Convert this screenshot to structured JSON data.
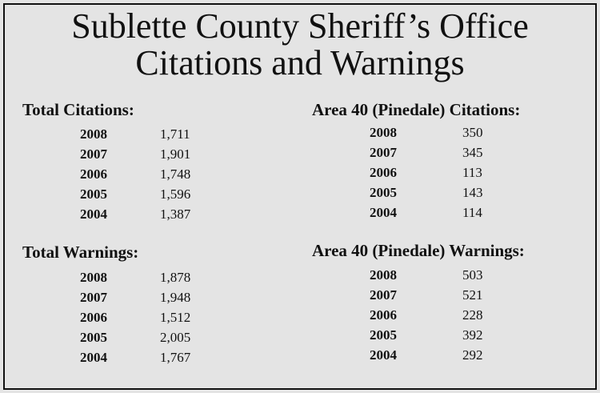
{
  "title": [
    "Sublette County Sheriff’s Office",
    "Citations and Warnings"
  ],
  "sections": [
    {
      "heading": "Total Citations:",
      "rows": [
        [
          "2008",
          "1,711"
        ],
        [
          "2007",
          "1,901"
        ],
        [
          "2006",
          "1,748"
        ],
        [
          "2005",
          "1,596"
        ],
        [
          "2004",
          "1,387"
        ]
      ]
    },
    {
      "heading": "Area 40 (Pinedale) Citations:",
      "rows": [
        [
          "2008",
          "350"
        ],
        [
          "2007",
          "345"
        ],
        [
          "2006",
          "113"
        ],
        [
          "2005",
          "143"
        ],
        [
          "2004",
          "114"
        ]
      ]
    },
    {
      "heading": "Total Warnings:",
      "rows": [
        [
          "2008",
          "1,878"
        ],
        [
          "2007",
          "1,948"
        ],
        [
          "2006",
          "1,512"
        ],
        [
          "2005",
          "2,005"
        ],
        [
          "2004",
          "1,767"
        ]
      ]
    },
    {
      "heading": "Area 40 (Pinedale) Warnings:",
      "rows": [
        [
          "2008",
          "503"
        ],
        [
          "2007",
          "521"
        ],
        [
          "2006",
          "228"
        ],
        [
          "2005",
          "392"
        ],
        [
          "2004",
          "292"
        ]
      ]
    }
  ]
}
